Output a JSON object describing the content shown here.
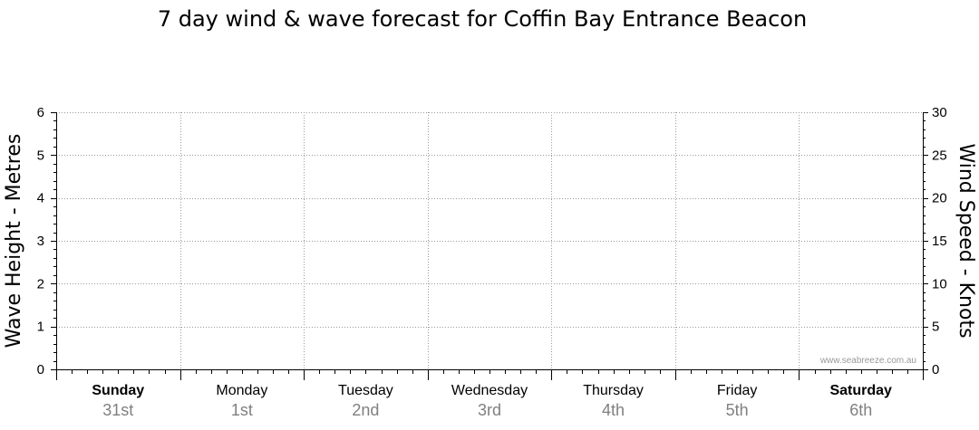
{
  "chart_data": {
    "type": "line",
    "title": "7 day wind & wave forecast for Coffin Bay Entrance Beacon",
    "ylabel_left": "Wave Height - Metres",
    "ylabel_right": "Wind Speed - Knots",
    "ylim_left": [
      0,
      6
    ],
    "ylim_right": [
      0,
      30
    ],
    "yticks_left": [
      "0",
      "1",
      "2",
      "3",
      "4",
      "5",
      "6"
    ],
    "yticks_right": [
      "0",
      "5",
      "10",
      "15",
      "20",
      "25",
      "30"
    ],
    "grid": true,
    "days": [
      {
        "day": "Sunday",
        "date": "31st",
        "bold": true
      },
      {
        "day": "Monday",
        "date": "1st",
        "bold": false
      },
      {
        "day": "Tuesday",
        "date": "2nd",
        "bold": false
      },
      {
        "day": "Wednesday",
        "date": "3rd",
        "bold": false
      },
      {
        "day": "Thursday",
        "date": "4th",
        "bold": false
      },
      {
        "day": "Friday",
        "date": "5th",
        "bold": false
      },
      {
        "day": "Saturday",
        "date": "6th",
        "bold": true
      }
    ],
    "series": [],
    "watermark": "www.seabreeze.com.au"
  }
}
